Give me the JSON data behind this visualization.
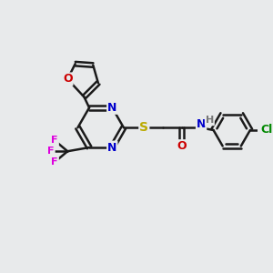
{
  "background_color": "#e8eaeb",
  "bond_color": "#1a1a1a",
  "bond_width": 1.8,
  "atom_colors": {
    "N": "#0000cc",
    "O": "#cc0000",
    "S": "#bbaa00",
    "F": "#dd00dd",
    "Cl": "#008800",
    "H": "#777777",
    "C": "#1a1a1a"
  },
  "font_size": 8,
  "figsize": [
    3.0,
    3.0
  ],
  "dpi": 100
}
